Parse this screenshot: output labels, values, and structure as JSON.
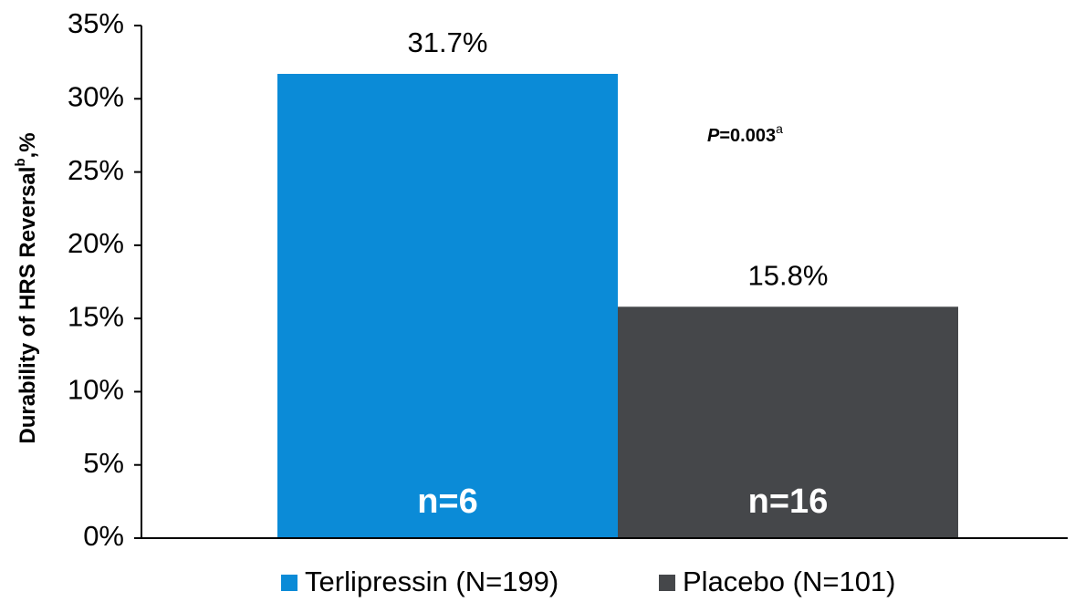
{
  "chart_data": {
    "type": "bar",
    "y_label": "Durability of HRS Reversal",
    "y_label_sup": "b",
    "y_label_suffix": ",%",
    "annotation": {
      "italic": "P",
      "text": "=0.003",
      "sup": "a"
    },
    "categories": [
      null
    ],
    "series": [
      {
        "name": "Terlipressin (N=199)",
        "color": "#0b8bd7",
        "values": [
          31.7
        ],
        "value_labels": [
          "31.7%"
        ],
        "n_labels": [
          "n=6"
        ]
      },
      {
        "name": "Placebo (N=101)",
        "color": "#45474a",
        "values": [
          15.8
        ],
        "value_labels": [
          "15.8%"
        ],
        "n_labels": [
          "n=16"
        ]
      }
    ],
    "ylim": [
      0,
      35
    ],
    "yticks": [
      {
        "value": 0,
        "label": "0%"
      },
      {
        "value": 5,
        "label": "5%"
      },
      {
        "value": 10,
        "label": "10%"
      },
      {
        "value": 15,
        "label": "15%"
      },
      {
        "value": 20,
        "label": "20%"
      },
      {
        "value": 25,
        "label": "25%"
      },
      {
        "value": 30,
        "label": "30%"
      },
      {
        "value": 35,
        "label": "35%"
      }
    ],
    "grid": false
  }
}
